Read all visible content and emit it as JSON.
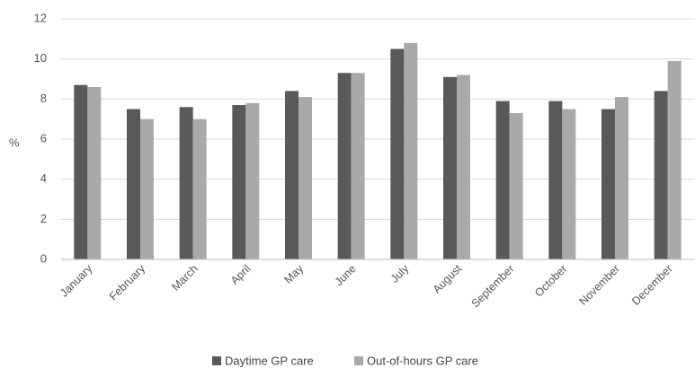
{
  "chart_data": {
    "type": "bar",
    "ylabel": "%",
    "ylim": [
      0,
      12
    ],
    "yticks": [
      0,
      2,
      4,
      6,
      8,
      10,
      12
    ],
    "grid": true,
    "legend_position": "bottom-center",
    "categories": [
      "January",
      "February",
      "March",
      "April",
      "May",
      "June",
      "July",
      "August",
      "September",
      "October",
      "November",
      "December"
    ],
    "series": [
      {
        "name": "Daytime GP care",
        "color": "#595959",
        "values": [
          8.7,
          7.5,
          7.6,
          7.7,
          8.4,
          9.3,
          10.5,
          9.1,
          7.9,
          7.9,
          7.5,
          8.4
        ]
      },
      {
        "name": "Out-of-hours GP care",
        "color": "#a9a9a9",
        "values": [
          8.6,
          7.0,
          7.0,
          7.8,
          8.1,
          9.3,
          10.8,
          9.2,
          7.3,
          7.5,
          8.1,
          9.9
        ]
      }
    ]
  }
}
